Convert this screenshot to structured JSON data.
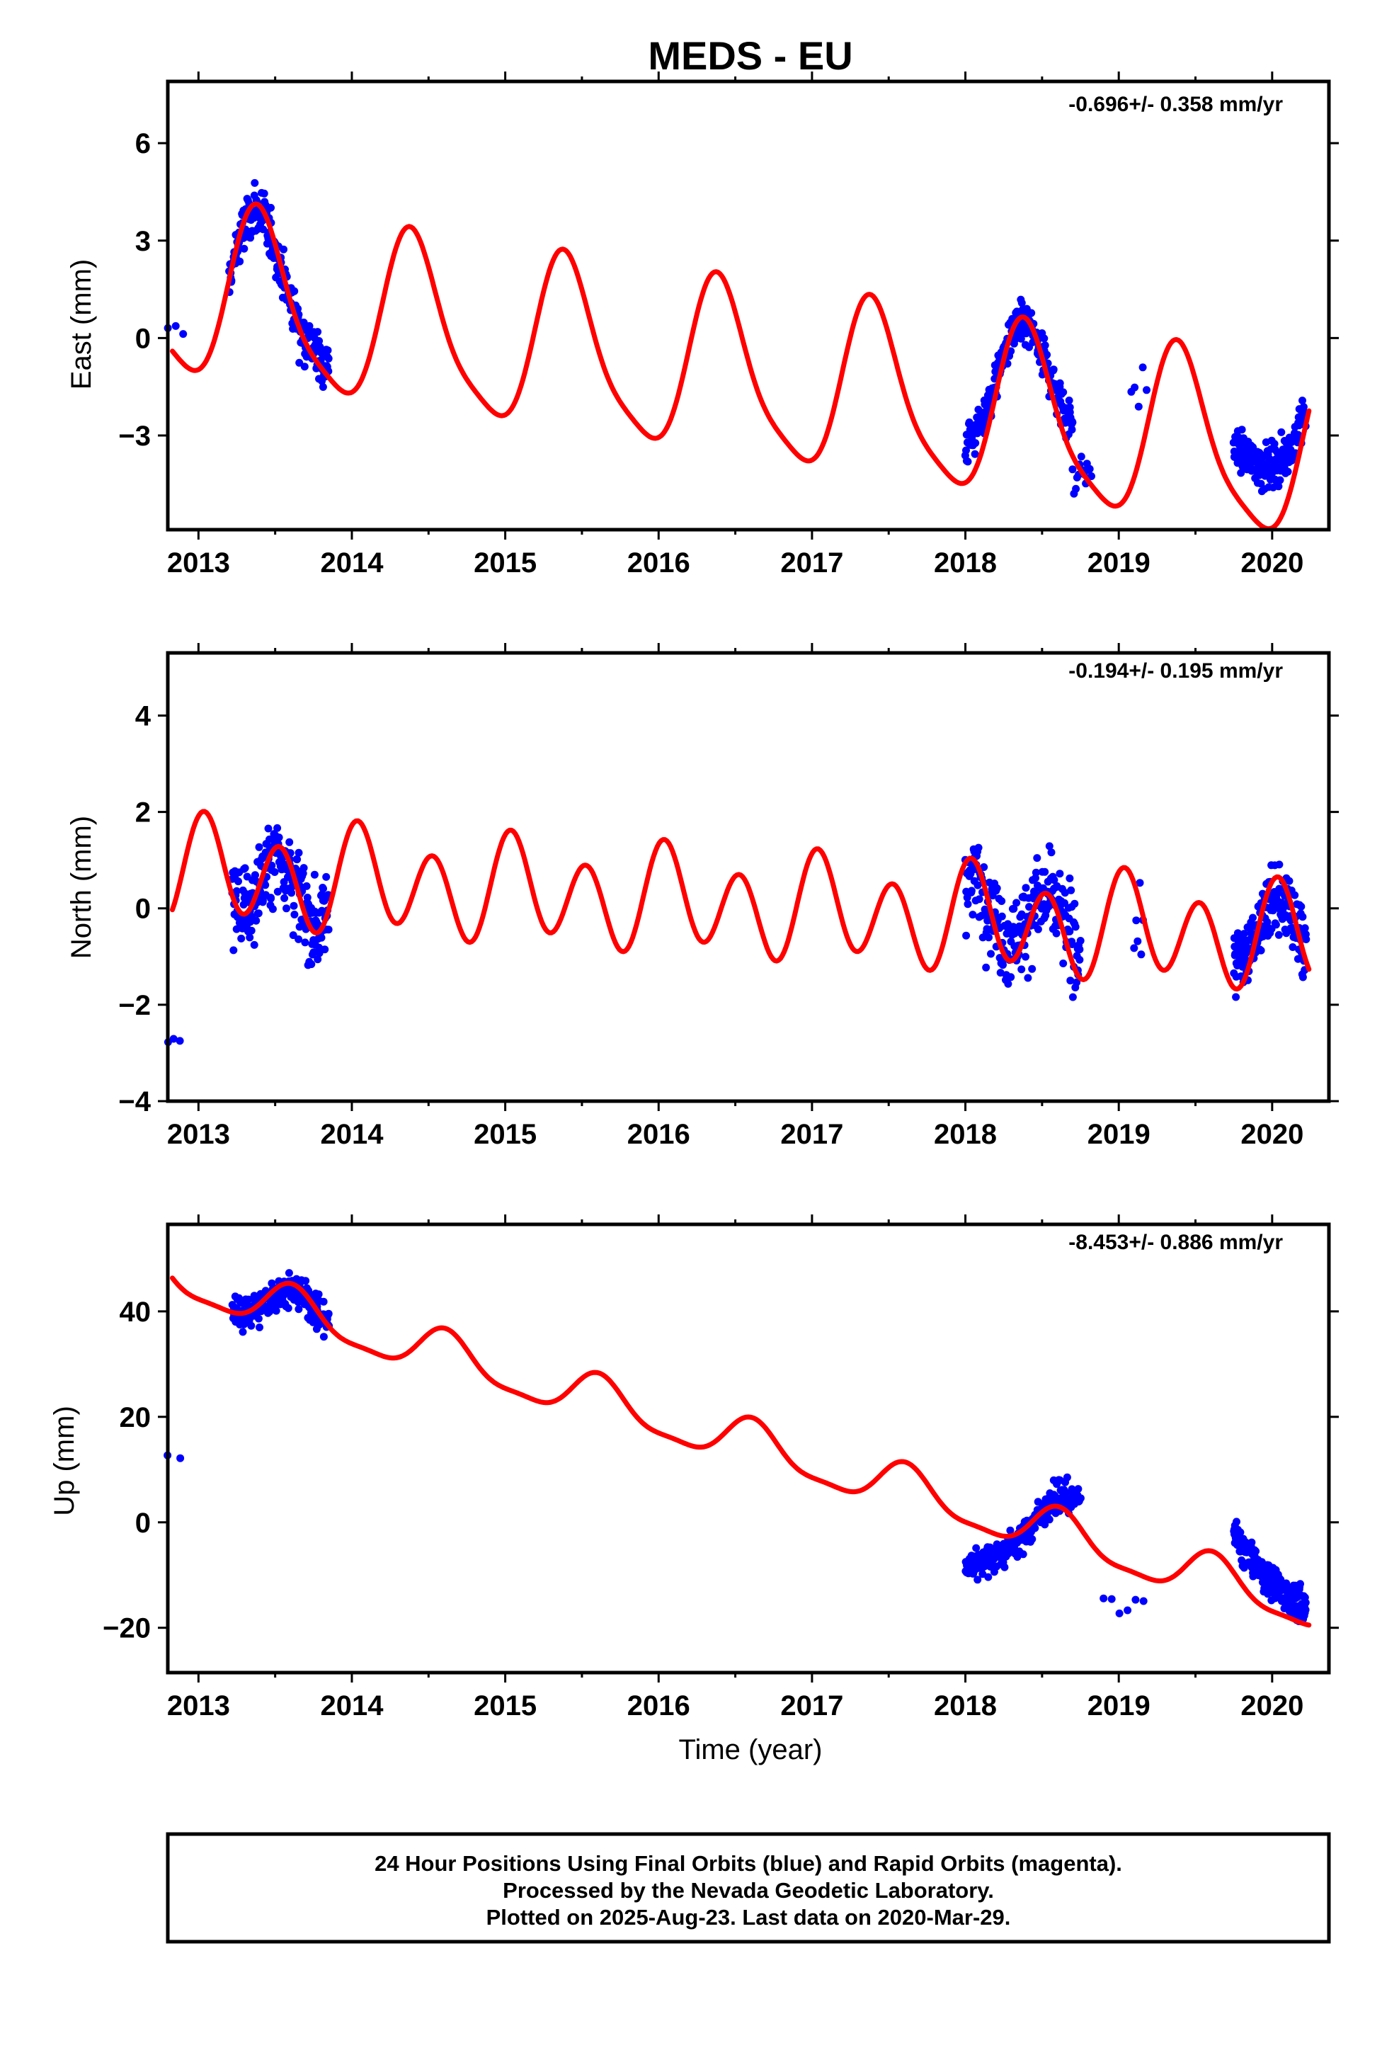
{
  "title": "MEDS - EU",
  "xlabel": "Time (year)",
  "footer": [
    "24 Hour Positions Using Final Orbits (blue) and Rapid Orbits (magenta).",
    "Processed by the Nevada Geodetic Laboratory.",
    "Plotted on 2025-Aug-23. Last data on 2020-Mar-29."
  ],
  "colors": {
    "fit": "#ff0000",
    "final_orbits": "#0000ff",
    "frame": "#000000"
  },
  "chart_data": [
    {
      "type": "scatter",
      "component": "east",
      "ylabel": "East (mm)",
      "rate_label": "-0.696+/- 0.358 mm/yr",
      "xlim": [
        2012.8,
        2020.37
      ],
      "ylim": [
        -5.9,
        7.9
      ],
      "xticks": [
        2013,
        2014,
        2015,
        2016,
        2017,
        2018,
        2019,
        2020
      ],
      "yticks": [
        -3,
        0,
        3,
        6
      ],
      "grid": false,
      "fit_model": {
        "start": 2012.83,
        "end": 2020.24,
        "intercept": 1.3,
        "trend": -0.696,
        "annual_amp": 2.6,
        "annual_phase_peak": 0.4,
        "semiannual_amp": 0.55,
        "semiannual_phase_peak": 0.35
      },
      "observation_spans": [
        {
          "from": 2012.8,
          "to": 2012.9,
          "n": 3,
          "center": 0.1,
          "slope": 0,
          "noise": 0.9,
          "ext": 0
        },
        {
          "from": 2013.2,
          "to": 2013.85,
          "n": 230,
          "center": 1.5,
          "slope": 0,
          "noise": 1.1,
          "ext": 0.9
        },
        {
          "from": 2018.0,
          "to": 2018.7,
          "n": 220,
          "center": -0.3,
          "slope": 0,
          "noise": 1.0,
          "ext": 0.7
        },
        {
          "from": 2018.7,
          "to": 2018.82,
          "n": 14,
          "center": -4.1,
          "slope": 0,
          "noise": 0.9,
          "ext": 0
        },
        {
          "from": 2019.08,
          "to": 2019.18,
          "n": 5,
          "center": -1.6,
          "slope": 0,
          "noise": 0.9,
          "ext": 0
        },
        {
          "from": 2019.75,
          "to": 2020.22,
          "n": 190,
          "center": -2.0,
          "slope": 0,
          "noise": 0.9,
          "ext": 0.5
        }
      ]
    },
    {
      "type": "scatter",
      "component": "north",
      "ylabel": "North (mm)",
      "rate_label": "-0.194+/- 0.195 mm/yr",
      "xlim": [
        2012.8,
        2020.37
      ],
      "ylim": [
        -4.0,
        5.3
      ],
      "xticks": [
        2013,
        2014,
        2015,
        2016,
        2017,
        2018,
        2019,
        2020
      ],
      "yticks": [
        -4,
        -2,
        0,
        2,
        4
      ],
      "grid": false,
      "fit_model": {
        "start": 2012.83,
        "end": 2020.24,
        "intercept": 0.75,
        "trend": -0.194,
        "annual_amp": 0.35,
        "annual_phase_peak": 0.1,
        "semiannual_amp": 0.95,
        "semiannual_phase_peak": 0.03
      },
      "observation_spans": [
        {
          "from": 2012.8,
          "to": 2012.88,
          "n": 3,
          "center": -2.75,
          "slope": 0,
          "noise": 0.1,
          "ext": 0
        },
        {
          "from": 2013.22,
          "to": 2013.85,
          "n": 230,
          "center": 0.3,
          "slope": 0,
          "noise": 1.3,
          "ext": 0.8
        },
        {
          "from": 2018.0,
          "to": 2018.75,
          "n": 230,
          "center": 0.1,
          "slope": 0,
          "noise": 1.3,
          "ext": 0.6
        },
        {
          "from": 2019.1,
          "to": 2019.16,
          "n": 6,
          "center": -0.4,
          "slope": 0,
          "noise": 1.3,
          "ext": 0
        },
        {
          "from": 2019.75,
          "to": 2020.22,
          "n": 190,
          "center": -0.4,
          "slope": 0,
          "noise": 1.0,
          "ext": 0.5
        }
      ]
    },
    {
      "type": "scatter",
      "component": "up",
      "ylabel": "Up (mm)",
      "rate_label": "-8.453+/- 0.886 mm/yr",
      "xlim": [
        2012.8,
        2020.37
      ],
      "ylim": [
        -28.5,
        56.5
      ],
      "xticks": [
        2013,
        2014,
        2015,
        2016,
        2017,
        2018,
        2019,
        2020
      ],
      "yticks": [
        -20,
        0,
        20,
        40
      ],
      "grid": false,
      "fit_model": {
        "start": 2012.83,
        "end": 2020.24,
        "intercept": 45.0,
        "trend": -8.453,
        "annual_amp": 4.2,
        "annual_phase_peak": 0.62,
        "semiannual_amp": 1.2,
        "semiannual_phase_peak": 0.6
      },
      "observation_spans": [
        {
          "from": 2012.8,
          "to": 2012.88,
          "n": 2,
          "center": 12.0,
          "slope": 0,
          "noise": 3,
          "ext": 0
        },
        {
          "from": 2013.22,
          "to": 2013.85,
          "n": 240,
          "center": 40.0,
          "slope": 0,
          "noise": 4.5,
          "ext": 0.8
        },
        {
          "from": 2018.0,
          "to": 2018.75,
          "n": 240,
          "center": -5.0,
          "slope": 18.0,
          "noise": 4.0,
          "ext": 0.7
        },
        {
          "from": 2018.9,
          "to": 2019.16,
          "n": 6,
          "center": -15.0,
          "slope": 0,
          "noise": 3,
          "ext": 0
        },
        {
          "from": 2019.75,
          "to": 2020.22,
          "n": 200,
          "center": -2.0,
          "slope": -18.0,
          "noise": 4.5,
          "ext": 0.6
        }
      ]
    }
  ]
}
